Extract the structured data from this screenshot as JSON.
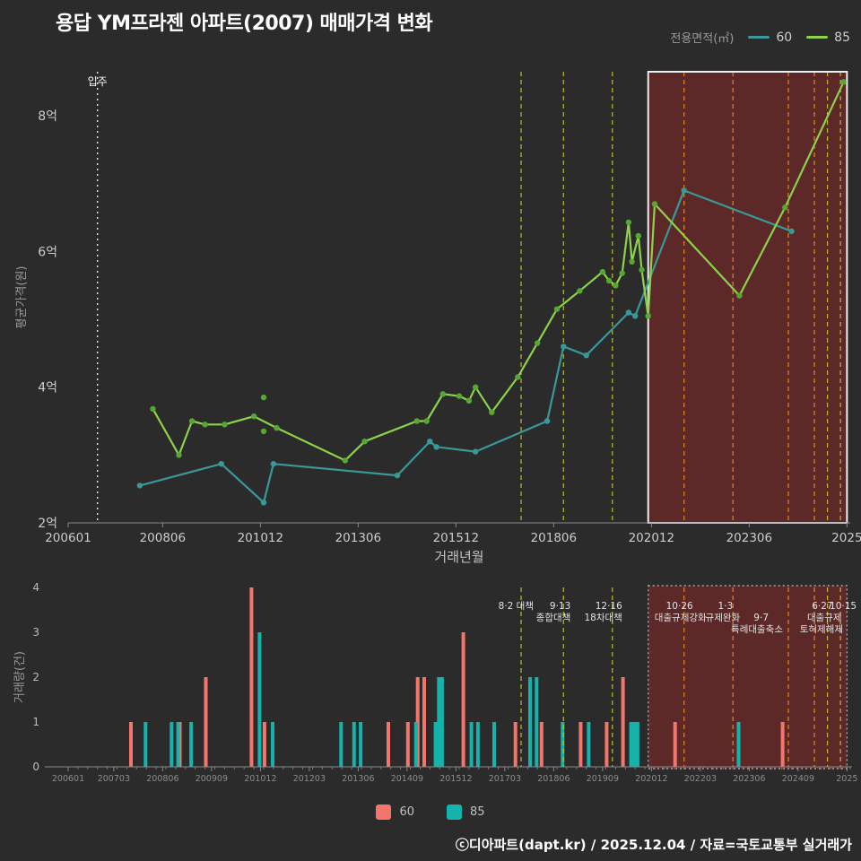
{
  "title": "용답 YM프라젠 아파트(2007) 매매가격 변화",
  "footer": "ⓒ디아파트(dapt.kr) / 2025.12.04 / 자료=국토교통부 실거래가",
  "legend": {
    "title": "전용면적(㎡)",
    "items": [
      {
        "label": "60",
        "color": "#3B9898"
      },
      {
        "label": "85",
        "color": "#8CD24B"
      }
    ]
  },
  "volume_legend": {
    "items": [
      {
        "label": "60",
        "color": "#F4756B"
      },
      {
        "label": "85",
        "color": "#14B3AB"
      }
    ]
  },
  "colors": {
    "background": "#2B2B2B",
    "series_60": "#3B9898",
    "series_85": "#8CD24B",
    "series_85_marker": "#57A832",
    "bar_60": "#F4756B",
    "bar_85": "#14B3AB",
    "policy_yellow": "#BCBC2E",
    "policy_orange": "#E08A1E",
    "highlight_fill": "rgba(148,38,38,0.48)",
    "highlight_border": "#EEEEEE",
    "move_in_line": "#E8E8E8"
  },
  "highlight": {
    "from": "202011",
    "to": "202512"
  },
  "policies": [
    {
      "month": "201708",
      "tone": "yellow",
      "labels": [
        {
          "text": "8·2 대책",
          "row": 1,
          "dx": 14
        }
      ]
    },
    {
      "month": "201809",
      "tone": "yellow",
      "labels": [
        {
          "text": "9·13",
          "row": 1,
          "dx": 8
        },
        {
          "text": "종합대책",
          "row": 2,
          "dx": 8
        }
      ]
    },
    {
      "month": "201912",
      "tone": "yellow",
      "labels": [
        {
          "text": "12·16",
          "row": 1,
          "dx": 11
        },
        {
          "text": "18차대책",
          "row": 2,
          "dx": 11
        }
      ]
    },
    {
      "month": "202110",
      "tone": "orange",
      "labels": [
        {
          "text": "10·26",
          "row": 1,
          "dx": 10
        },
        {
          "text": "대출규제강화",
          "row": 2,
          "dx": 25
        }
      ]
    },
    {
      "month": "202301",
      "tone": "orange",
      "labels": [
        {
          "text": "1·3",
          "row": 1,
          "dx": 0
        },
        {
          "text": "규제완화",
          "row": 2,
          "dx": 8
        }
      ]
    },
    {
      "month": "202406",
      "tone": "orange",
      "labels": [
        {
          "text": "9·7",
          "row": 2,
          "dx": -22
        },
        {
          "text": "특례대출축소",
          "row": 3,
          "dx": -6
        }
      ]
    },
    {
      "month": "202502",
      "tone": "orange",
      "labels": [
        {
          "text": "토허제해제",
          "row": 3,
          "dx": 32
        }
      ]
    },
    {
      "month": "202506",
      "tone": "yellow",
      "labels": [
        {
          "text": "6·27",
          "row": 1,
          "dx": 6
        },
        {
          "text": "대출규제",
          "row": 2,
          "dx": 16
        }
      ]
    },
    {
      "month": "202510",
      "tone": "yellow",
      "labels": [
        {
          "text": "10·15",
          "row": 1,
          "dx": 18
        }
      ]
    }
  ],
  "chart_data": [
    {
      "type": "line",
      "title": "매매가격 변화",
      "xlabel": "거래년월",
      "ylabel": "평균가격(원)",
      "x_unit": "yyyymm",
      "ylim": [
        2,
        8.65
      ],
      "y_unit": "억",
      "move_in": {
        "label": "입주",
        "month": "200610"
      },
      "y_ticks": [
        {
          "value": 2,
          "label": "2억"
        },
        {
          "value": 4,
          "label": "4억"
        },
        {
          "value": 6,
          "label": "6억"
        },
        {
          "value": 8,
          "label": "8억"
        }
      ],
      "x_ticks": [
        {
          "label": "200601",
          "month": "200601"
        },
        {
          "label": "200806",
          "month": "200806"
        },
        {
          "label": "201012",
          "month": "201012"
        },
        {
          "label": "201306",
          "month": "201306"
        },
        {
          "label": "201512",
          "month": "201512"
        },
        {
          "label": "201806",
          "month": "201806"
        },
        {
          "label": "202012",
          "month": "202012"
        },
        {
          "label": "202306",
          "month": "202306"
        },
        {
          "label": "2025",
          "month": "202512"
        }
      ],
      "series": [
        {
          "name": "60",
          "line_color": "#3B9898",
          "marker_color": "#3B9898",
          "points": [
            [
              "200711",
              2.55
            ],
            [
              "200912",
              2.87
            ],
            [
              "201101",
              2.3
            ],
            [
              "201104",
              2.87
            ],
            [
              "201406",
              2.7
            ],
            [
              "201504",
              3.2
            ],
            [
              "201506",
              3.12
            ],
            [
              "201606",
              3.05
            ],
            [
              "201804",
              3.5
            ],
            [
              "201809",
              4.6
            ],
            [
              "201904",
              4.47
            ],
            [
              "202005",
              5.1
            ],
            [
              "202007",
              5.05
            ],
            [
              "202110",
              6.9
            ],
            [
              "202407",
              6.3
            ]
          ]
        },
        {
          "name": "85",
          "line_color": "#8CD24B",
          "marker_color": "#57A832",
          "points": [
            [
              "200803",
              3.68
            ],
            [
              "200811",
              3.0
            ],
            [
              "200903",
              3.5
            ],
            [
              "200907",
              3.45
            ],
            [
              "201001",
              3.45
            ],
            [
              "201010",
              3.57
            ],
            [
              "201105",
              3.4
            ],
            [
              "201302",
              2.92
            ],
            [
              "201308",
              3.2
            ],
            [
              "201412",
              3.5
            ],
            [
              "201503",
              3.5
            ],
            [
              "201508",
              3.9
            ],
            [
              "201601",
              3.87
            ],
            [
              "201604",
              3.8
            ],
            [
              "201606",
              4.0
            ],
            [
              "201611",
              3.63
            ],
            [
              "201707",
              4.15
            ],
            [
              "201801",
              4.65
            ],
            [
              "201807",
              5.15
            ],
            [
              "201902",
              5.42
            ],
            [
              "201909",
              5.7
            ],
            [
              "201911",
              5.57
            ],
            [
              "202001",
              5.5
            ],
            [
              "202003",
              5.68
            ],
            [
              "202005",
              6.43
            ],
            [
              "202006",
              5.85
            ],
            [
              "202008",
              6.23
            ],
            [
              "202009",
              5.73
            ],
            [
              "202011",
              5.05
            ],
            [
              "202101",
              6.7
            ],
            [
              "202303",
              5.35
            ],
            [
              "202405",
              6.65
            ],
            [
              "202511",
              8.5
            ]
          ],
          "extra_points": [
            [
              "201101",
              3.85
            ],
            [
              "201101",
              3.35
            ]
          ]
        }
      ]
    },
    {
      "type": "bar",
      "ylabel": "거래량(건)",
      "ylim": [
        0,
        4
      ],
      "y_ticks": [
        0,
        1,
        2,
        3,
        4
      ],
      "x_ticks": [
        {
          "label": "200601",
          "month": "200601"
        },
        {
          "label": "200703",
          "month": "200703"
        },
        {
          "label": "200806",
          "month": "200806"
        },
        {
          "label": "200909",
          "month": "200909"
        },
        {
          "label": "201012",
          "month": "201012"
        },
        {
          "label": "201203",
          "month": "201203"
        },
        {
          "label": "201306",
          "month": "201306"
        },
        {
          "label": "201409",
          "month": "201409"
        },
        {
          "label": "201512",
          "month": "201512"
        },
        {
          "label": "201703",
          "month": "201703"
        },
        {
          "label": "201806",
          "month": "201806"
        },
        {
          "label": "201909",
          "month": "201909"
        },
        {
          "label": "202012",
          "month": "202012"
        },
        {
          "label": "202203",
          "month": "202203"
        },
        {
          "label": "202306",
          "month": "202306"
        },
        {
          "label": "202409",
          "month": "202409"
        },
        {
          "label": "2025",
          "month": "202512"
        }
      ],
      "series": [
        {
          "name": "60",
          "color": "#F4756B",
          "bars": [
            [
              "200709",
              1
            ],
            [
              "200812",
              1
            ],
            [
              "200908",
              2
            ],
            [
              "201010",
              4
            ],
            [
              "201102",
              1
            ],
            [
              "201404",
              1
            ],
            [
              "201410",
              1
            ],
            [
              "201501",
              2
            ],
            [
              "201503",
              2
            ],
            [
              "201603",
              3
            ],
            [
              "201707",
              1
            ],
            [
              "201803",
              1
            ],
            [
              "201903",
              1
            ],
            [
              "201911",
              1
            ],
            [
              "202004",
              2
            ],
            [
              "202108",
              1
            ],
            [
              "202405",
              1
            ]
          ]
        },
        {
          "name": "85",
          "color": "#14B3AB",
          "bars": [
            [
              "200712",
              1
            ],
            [
              "200808",
              1
            ],
            [
              "200810",
              1
            ],
            [
              "200902",
              1
            ],
            [
              "201011",
              3
            ],
            [
              "201103",
              1
            ],
            [
              "201212",
              1
            ],
            [
              "201304",
              1
            ],
            [
              "201306",
              1
            ],
            [
              "201411",
              1
            ],
            [
              "201505",
              1
            ],
            [
              "201506",
              2
            ],
            [
              "201507",
              2
            ],
            [
              "201604",
              1
            ],
            [
              "201606",
              1
            ],
            [
              "201611",
              1
            ],
            [
              "201710",
              2
            ],
            [
              "201712",
              2
            ],
            [
              "201808",
              1
            ],
            [
              "201904",
              1
            ],
            [
              "202005",
              1
            ],
            [
              "202006",
              1
            ],
            [
              "202007",
              1
            ],
            [
              "202302",
              1
            ]
          ]
        }
      ]
    }
  ]
}
